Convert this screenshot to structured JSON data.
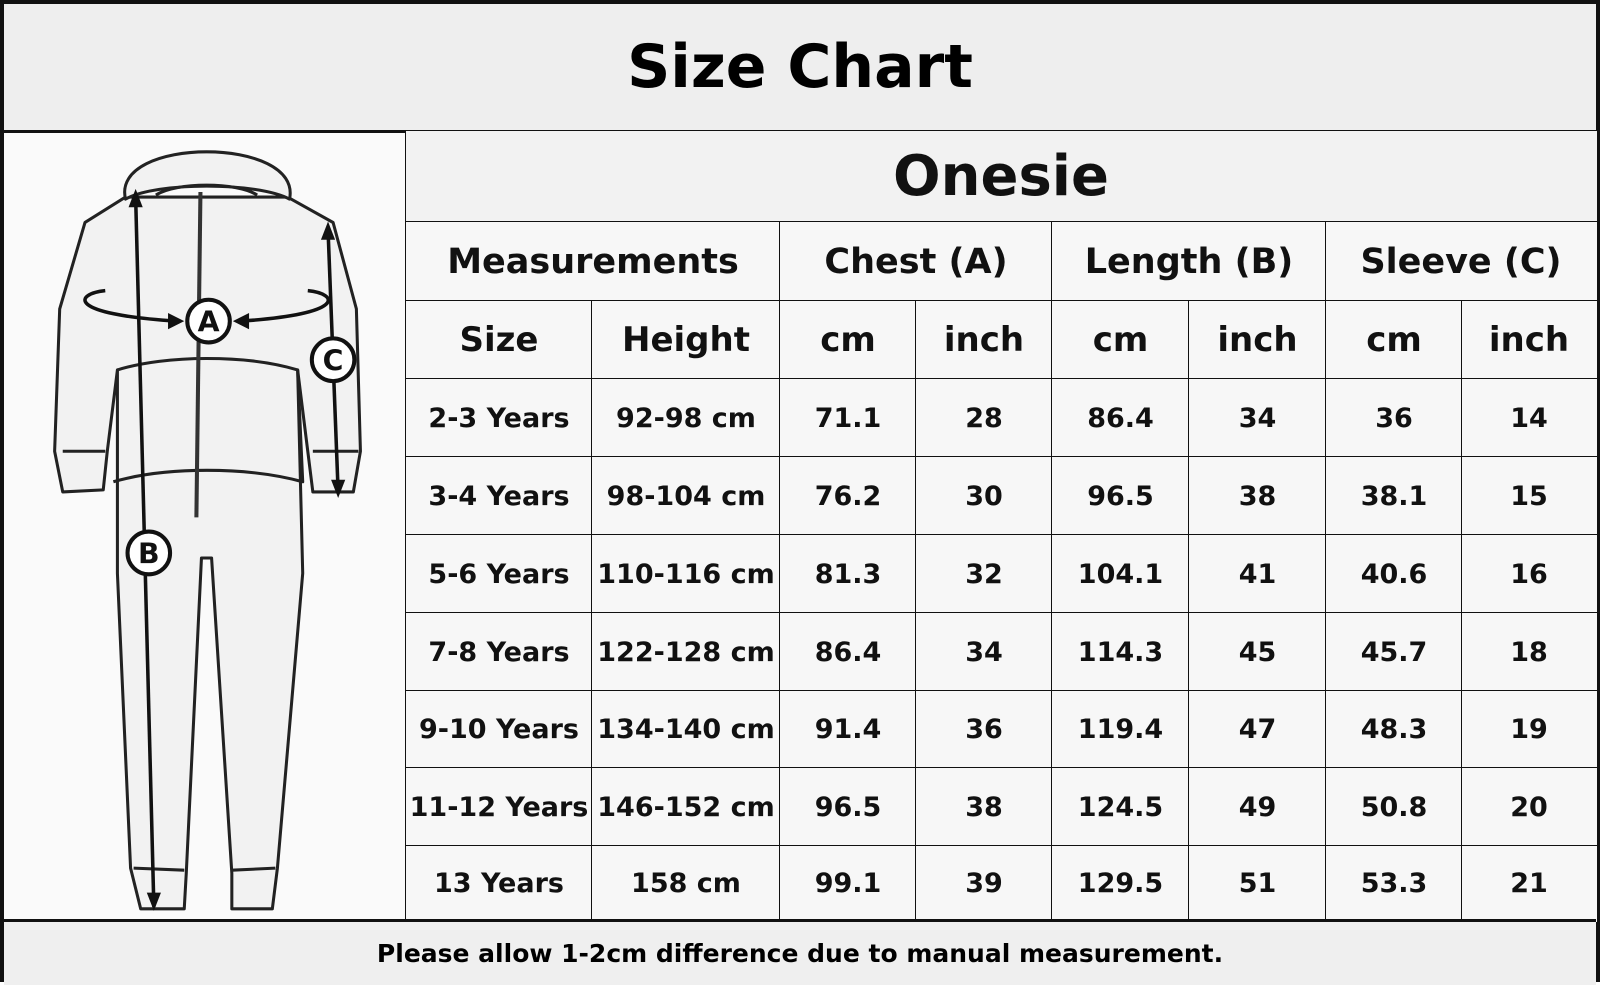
{
  "title": "Size Chart",
  "diagram_labels": [
    "A",
    "B",
    "C"
  ],
  "table": {
    "title": "Onesie",
    "groups": [
      "Measurements",
      "Chest (A)",
      "Length (B)",
      "Sleeve (C)"
    ],
    "columns": [
      "Size",
      "Height",
      "cm",
      "inch",
      "cm",
      "inch",
      "cm",
      "inch"
    ],
    "rows": [
      [
        "2-3 Years",
        "92-98 cm",
        "71.1",
        "28",
        "86.4",
        "34",
        "36",
        "14"
      ],
      [
        "3-4 Years",
        "98-104 cm",
        "76.2",
        "30",
        "96.5",
        "38",
        "38.1",
        "15"
      ],
      [
        "5-6 Years",
        "110-116 cm",
        "81.3",
        "32",
        "104.1",
        "41",
        "40.6",
        "16"
      ],
      [
        "7-8 Years",
        "122-128 cm",
        "86.4",
        "34",
        "114.3",
        "45",
        "45.7",
        "18"
      ],
      [
        "9-10 Years",
        "134-140 cm",
        "91.4",
        "36",
        "119.4",
        "47",
        "48.3",
        "19"
      ],
      [
        "11-12 Years",
        "146-152 cm",
        "96.5",
        "38",
        "124.5",
        "49",
        "50.8",
        "20"
      ],
      [
        "13 Years",
        "158 cm",
        "99.1",
        "39",
        "129.5",
        "51",
        "53.3",
        "21"
      ]
    ]
  },
  "footer": "Please allow 1-2cm difference due to manual measurement."
}
